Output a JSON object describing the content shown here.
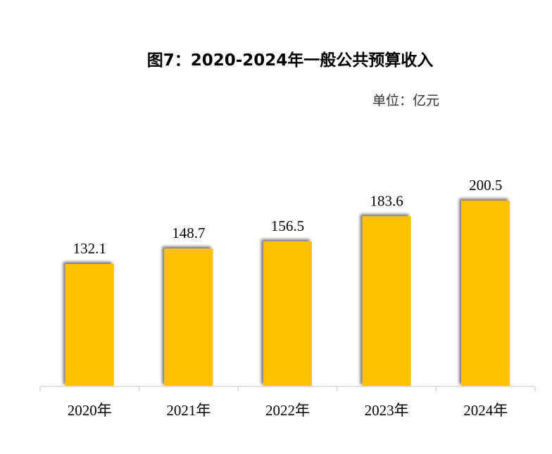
{
  "chart_data": {
    "type": "bar",
    "title": "图7：2020-2024年一般公共预算收入",
    "unit": "单位：亿元",
    "categories": [
      "2020年",
      "2021年",
      "2022年",
      "2023年",
      "2024年"
    ],
    "series": [
      {
        "name": "一般公共预算收入",
        "values": [
          132.1,
          148.7,
          156.5,
          183.6,
          200.5
        ],
        "labels": [
          "132.1",
          "148.7",
          "156.5",
          "183.6",
          "200.5"
        ]
      }
    ],
    "ylim": [
      0,
      250
    ],
    "grid": false,
    "legend": "none",
    "xlabel": "",
    "ylabel": "",
    "colors": {
      "bar": "#FFC000",
      "axis": "#D9D9D9",
      "shadow": "#7F7F7F"
    }
  }
}
